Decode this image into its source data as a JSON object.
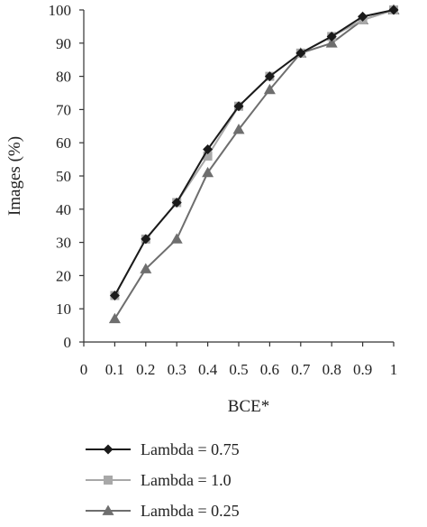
{
  "chart_data": {
    "type": "line",
    "xlabel": "BCE*",
    "ylabel": "Images (%)",
    "xlim": [
      0,
      1
    ],
    "ylim": [
      0,
      100
    ],
    "x_ticks": [
      "0",
      "0.1",
      "0.2",
      "0.3",
      "0.4",
      "0.5",
      "0.6",
      "0.7",
      "0.8",
      "0.9",
      "1"
    ],
    "y_ticks": [
      "0",
      "10",
      "20",
      "30",
      "40",
      "50",
      "60",
      "70",
      "80",
      "90",
      "100"
    ],
    "grid": false,
    "legend_placement": "bottom",
    "x": [
      0.1,
      0.2,
      0.3,
      0.4,
      0.5,
      0.6,
      0.7,
      0.8,
      0.9,
      1.0
    ],
    "series": [
      {
        "name": "Lambda = 0.75",
        "marker": "diamond",
        "color": "#1a1a1a",
        "values": [
          14,
          31,
          42,
          58,
          71,
          80,
          87,
          92,
          98,
          100
        ]
      },
      {
        "name": "Lambda = 1.0",
        "marker": "square",
        "color": "#a8a8a8",
        "values": [
          14,
          31,
          42,
          56,
          71,
          80,
          87,
          92,
          97,
          100
        ]
      },
      {
        "name": "Lambda = 0.25",
        "marker": "triangle",
        "color": "#6e6e6e",
        "values": [
          7,
          22,
          31,
          51,
          64,
          76,
          87,
          90,
          97,
          100
        ]
      }
    ]
  }
}
